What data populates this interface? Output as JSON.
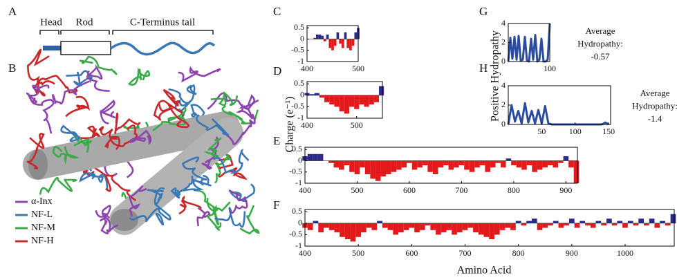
{
  "panel_labels": [
    "A",
    "B",
    "C",
    "D",
    "E",
    "F",
    "G",
    "H"
  ],
  "diagram": {
    "labels": [
      "Head",
      "Rod",
      "C-Terminus tail"
    ]
  },
  "legend": {
    "items": [
      {
        "name": "α-Inx",
        "color": "#8e44ad"
      },
      {
        "name": "NF-L",
        "color": "#3a78b5"
      },
      {
        "name": "NF-M",
        "color": "#3aab48"
      },
      {
        "name": "NF-H",
        "color": "#c8282a"
      }
    ]
  },
  "chart_data": [
    {
      "type": "bar",
      "positive_color": "#2b2b8f",
      "negative_color": "#e31a1c",
      "x": [
        400,
        405,
        410,
        415,
        420,
        425,
        430,
        435,
        440,
        445,
        450,
        455,
        460,
        465,
        470,
        475,
        480,
        485,
        490,
        495,
        500
      ],
      "values": [
        0,
        0,
        0,
        0.05,
        0.2,
        0.2,
        0.15,
        -0.1,
        0.2,
        -0.4,
        -0.5,
        -0.3,
        0.3,
        -0.2,
        -0.4,
        0.3,
        -0.4,
        -0.5,
        -0.3,
        0.3,
        0.5
      ],
      "xlim": [
        400,
        500
      ],
      "xticks": [
        400,
        500
      ],
      "ylim": [
        -1,
        0.6
      ],
      "yticks": [
        -1,
        -0.5,
        0,
        0.5
      ]
    },
    {
      "type": "bar",
      "positive_color": "#2b2b8f",
      "negative_color": "#e31a1c",
      "x": [
        400,
        410,
        420,
        430,
        440,
        450,
        460,
        470,
        480,
        490,
        500,
        510,
        520,
        530,
        540,
        550
      ],
      "values": [
        0.1,
        0.05,
        0.1,
        -0.1,
        -0.3,
        -0.4,
        -0.5,
        -0.7,
        -0.8,
        -0.5,
        -0.6,
        -0.4,
        -0.5,
        -0.4,
        -0.3,
        0.4
      ],
      "xlim": [
        400,
        552
      ],
      "xticks": [
        400,
        500
      ],
      "ylim": [
        -1,
        0.6
      ],
      "yticks": [
        -1,
        -0.5,
        0,
        0.5
      ]
    },
    {
      "type": "bar",
      "positive_color": "#2b2b8f",
      "negative_color": "#e31a1c",
      "y_label": "Charge  (e⁻¹)",
      "x": [
        400,
        410,
        420,
        430,
        440,
        450,
        460,
        470,
        480,
        490,
        500,
        510,
        520,
        530,
        540,
        550,
        560,
        570,
        580,
        590,
        600,
        610,
        620,
        630,
        640,
        650,
        660,
        670,
        680,
        690,
        700,
        710,
        720,
        730,
        740,
        750,
        760,
        770,
        780,
        790,
        800,
        810,
        820,
        830,
        840,
        850,
        860,
        870,
        880,
        890,
        900,
        910,
        920
      ],
      "values": [
        0.2,
        0.3,
        0.3,
        0.3,
        0,
        -0.1,
        -0.3,
        -0.4,
        -0.2,
        -0.5,
        -0.6,
        -0.3,
        -0.6,
        -0.8,
        -0.9,
        -0.7,
        -0.6,
        -0.5,
        -0.4,
        -0.3,
        -0.1,
        -0.4,
        -0.3,
        -0.2,
        -0.5,
        -0.6,
        -0.3,
        -0.2,
        -0.4,
        -0.3,
        -0.2,
        -0.4,
        -0.5,
        -0.3,
        -0.2,
        -0.5,
        -0.3,
        -0.1,
        -0.3,
        0.1,
        -0.2,
        -0.3,
        -0.4,
        -0.2,
        -0.5,
        -0.4,
        -0.3,
        -0.2,
        -0.3,
        -0.1,
        0.2,
        -0.3,
        -1
      ],
      "xlim": [
        400,
        922
      ],
      "xticks": [
        400,
        500,
        600,
        700,
        800,
        900
      ],
      "ylim": [
        -1,
        0.6
      ],
      "yticks": [
        -1,
        -0.5,
        0,
        0.5
      ]
    },
    {
      "type": "bar",
      "positive_color": "#2b2b8f",
      "negative_color": "#e31a1c",
      "x_label": "Amino Acid",
      "x": [
        400,
        410,
        420,
        430,
        440,
        450,
        460,
        470,
        480,
        490,
        500,
        510,
        520,
        530,
        540,
        550,
        560,
        570,
        580,
        590,
        600,
        610,
        620,
        630,
        640,
        650,
        660,
        670,
        680,
        690,
        700,
        710,
        720,
        730,
        740,
        750,
        760,
        770,
        780,
        790,
        800,
        810,
        820,
        830,
        840,
        850,
        860,
        870,
        880,
        890,
        900,
        910,
        920,
        930,
        940,
        950,
        960,
        970,
        980,
        990,
        1000,
        1010,
        1020,
        1030,
        1040,
        1050,
        1060,
        1070,
        1080,
        1090
      ],
      "values": [
        -0.2,
        -0.3,
        0.1,
        -0.4,
        -0.2,
        -0.3,
        -0.4,
        -0.6,
        -0.7,
        -0.8,
        -0.6,
        -0.4,
        -0.2,
        -0.3,
        0.1,
        -0.2,
        -0.3,
        -0.5,
        -0.4,
        -0.3,
        -0.2,
        -0.4,
        -0.3,
        -0.1,
        -0.3,
        -0.5,
        -0.4,
        -0.3,
        -0.5,
        -0.4,
        -0.3,
        -0.2,
        -0.4,
        -0.5,
        -0.6,
        -0.7,
        -0.5,
        -0.3,
        -0.2,
        -0.3,
        0.1,
        -0.1,
        0.1,
        0.2,
        -0.3,
        -0.2,
        -0.1,
        0.1,
        -0.2,
        -0.1,
        0.2,
        -0.2,
        0.1,
        -0.1,
        -0.2,
        0.1,
        -0.1,
        0.2,
        -0.1,
        0.1,
        -0.2,
        0.1,
        -0.1,
        0.2,
        -0.1,
        0.2,
        -0.2,
        0.1,
        -0.1,
        0.4
      ],
      "xlim": [
        400,
        1092
      ],
      "xticks": [
        400,
        500,
        600,
        700,
        800,
        900,
        1000
      ],
      "ylim": [
        -1,
        0.6
      ],
      "yticks": [
        -1,
        -0.5,
        0,
        0.5
      ]
    },
    {
      "type": "line",
      "color": "#2a4ba0",
      "annotations": [
        "Average",
        "Hydropathy:",
        "-0.57"
      ],
      "x": [
        0,
        5,
        10,
        15,
        20,
        25,
        30,
        35,
        40,
        45,
        50,
        55,
        60,
        65,
        70,
        75,
        80,
        85,
        90,
        95,
        100
      ],
      "values": [
        0,
        2.5,
        0.3,
        2.6,
        0.2,
        2.7,
        0.1,
        0.2,
        2.6,
        0.1,
        0,
        2.4,
        0.2,
        2.8,
        0,
        0.2,
        2.4,
        0,
        0,
        0.2,
        4
      ],
      "xlim": [
        0,
        100
      ],
      "xticks": [
        100
      ],
      "ylim": [
        0,
        4
      ],
      "yticks": [
        0,
        2,
        4
      ]
    },
    {
      "type": "line",
      "color": "#2a4ba0",
      "y_label": "Positive Hydropathy",
      "annotations": [
        "Average",
        "Hydropathy:",
        "-1.4"
      ],
      "x": [
        0,
        5,
        10,
        15,
        20,
        25,
        30,
        35,
        40,
        45,
        50,
        55,
        60,
        65,
        70,
        75,
        80,
        85,
        90,
        95,
        100,
        105,
        110,
        115,
        120,
        125,
        130,
        135,
        140,
        145,
        150
      ],
      "values": [
        0,
        2,
        0.3,
        1.4,
        0.1,
        2.2,
        0.2,
        1.4,
        0.1,
        1.5,
        0.1,
        1.9,
        0.1,
        0,
        0,
        0,
        0,
        0,
        0,
        0,
        0,
        0,
        0,
        0,
        0,
        0,
        0,
        0,
        0,
        0.2,
        0
      ],
      "xlim": [
        0,
        153
      ],
      "xticks": [
        50,
        100,
        150
      ],
      "ylim": [
        0,
        4
      ],
      "yticks": [
        0,
        2,
        4
      ]
    }
  ]
}
